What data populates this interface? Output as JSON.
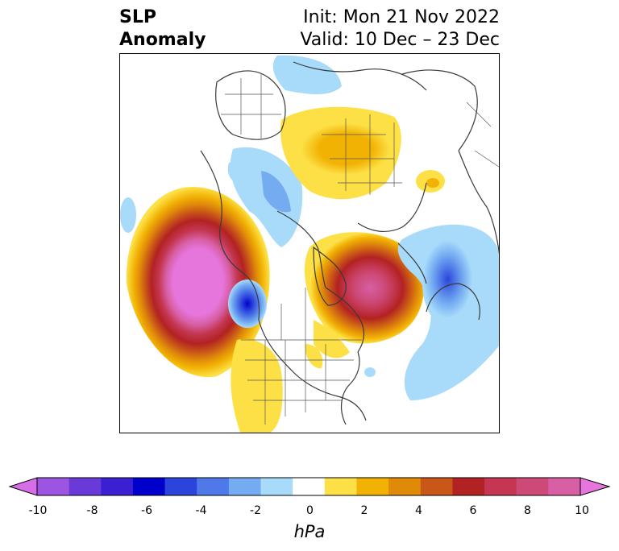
{
  "header": {
    "title_line1": "SLP",
    "title_line2": "Anomaly",
    "init_line": "Init: Mon 21 Nov 2022",
    "valid_line": "Valid: 10 Dec – 23 Dec"
  },
  "colorbar": {
    "unit": "hPa",
    "tick_labels": [
      "-10",
      "-8",
      "-6",
      "-4",
      "-2",
      "0",
      "2",
      "4",
      "6",
      "8",
      "10"
    ],
    "extend": "both",
    "bin_colors": [
      "#d56ee8",
      "#9b55e0",
      "#6a3ad9",
      "#3a1fd3",
      "#0000cd",
      "#2b45dc",
      "#4f79e8",
      "#74abf1",
      "#a8dbfa",
      "#ffffff",
      "#fce045",
      "#f2b204",
      "#e08a0a",
      "#c95717",
      "#b22222",
      "#c43651",
      "#cd4a78",
      "#d75fa3",
      "#e675dc"
    ]
  },
  "map": {
    "projection": "north polar stereographic",
    "anomaly_centers": [
      {
        "region": "northeast-pacific",
        "sign": "positive",
        "peak_hpa": 10
      },
      {
        "region": "hudson-bay-labrador",
        "sign": "positive",
        "peak_hpa": 8
      },
      {
        "region": "siberia",
        "sign": "positive",
        "peak_hpa": 3
      },
      {
        "region": "pacific-northwest-coast",
        "sign": "negative",
        "peak_hpa": -6
      },
      {
        "region": "north-atlantic",
        "sign": "negative",
        "peak_hpa": -4
      },
      {
        "region": "arctic-ocean",
        "sign": "negative",
        "peak_hpa": -2
      }
    ]
  }
}
